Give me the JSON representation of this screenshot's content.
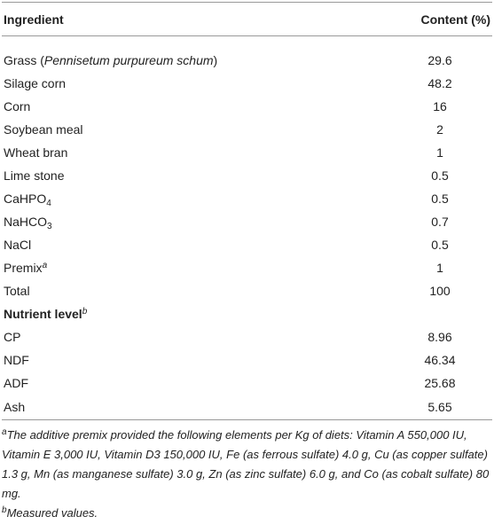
{
  "table": {
    "header": [
      "Ingredient",
      "Content (%)"
    ],
    "rows": [
      {
        "label": [
          "Grass (",
          "Pennisetum purpureum schum",
          ")"
        ],
        "value": 29.6
      },
      {
        "label": [
          "Silage corn"
        ],
        "value": 48.2
      },
      {
        "label": [
          "Corn"
        ],
        "value": 16
      },
      {
        "label": [
          "Soybean meal"
        ],
        "value": 2
      },
      {
        "label": [
          "Wheat bran"
        ],
        "value": 1
      },
      {
        "label": [
          "Lime stone"
        ],
        "value": 0.5
      },
      {
        "label": [
          "CaHPO",
          "4"
        ],
        "value": 0.5
      },
      {
        "label": [
          "NaHCO",
          "3"
        ],
        "value": 0.7
      },
      {
        "label": [
          "NaCl"
        ],
        "value": 0.5
      },
      {
        "label": [
          "Premix",
          "a"
        ],
        "value": 1
      },
      {
        "label": [
          "Total"
        ],
        "value": 100
      }
    ],
    "section": [
      "Nutrient level",
      "b"
    ],
    "nutrients": [
      {
        "label": "CP",
        "value": 8.96
      },
      {
        "label": "NDF",
        "value": 46.34
      },
      {
        "label": "ADF",
        "value": 25.68
      },
      {
        "label": "Ash",
        "value": 5.65
      }
    ]
  },
  "footnotes": [
    [
      "a",
      "The additive premix provided the following elements per Kg of diets: Vitamin A 550,000 IU, Vitamin E 3,000 IU, Vitamin D3 150,000 IU, Fe (as ferrous sulfate) 4.0 g, Cu (as copper sulfate) 1.3 g, Mn (as manganese sulfate) 3.0 g, Zn (as zinc sulfate) 6.0 g, and Co (as cobalt sulfate) 80 mg."
    ],
    [
      "b",
      "Measured values."
    ]
  ]
}
